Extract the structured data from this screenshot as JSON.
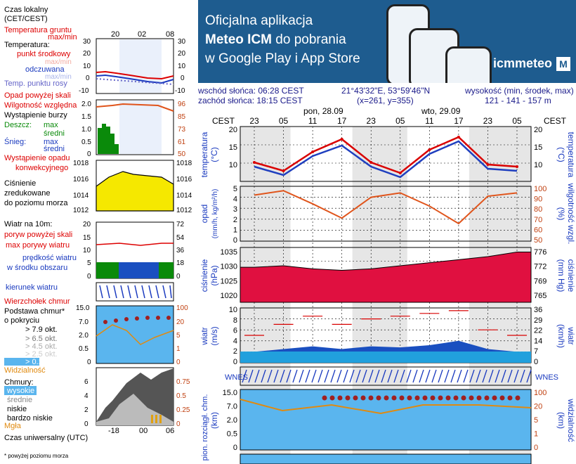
{
  "banner": {
    "line1": "Oficjalna aplikacja",
    "line2_bold": "Meteo ICM",
    "line2_rest": " do pobrania",
    "line3": "w Google Play i App Store",
    "logo": "icmmeteo",
    "logo_mark": "M"
  },
  "legend": {
    "time_local": "Czas lokalny",
    "time_local2": "(CET/CEST)",
    "soil_temp": "Temperatura gruntu",
    "maxmin": "max/min",
    "temperature": "Temperatura:",
    "midpoint": "punkt środkowy",
    "maxmin2": "max/min",
    "feels": "odczuwana",
    "maxmin3": "max/min",
    "dew": "Temp. punktu rosy",
    "precip_above": "Opad powyżej skali",
    "humidity": "Wilgotność względna",
    "storm": "Wystąpienie burzy",
    "rain": "Deszcz:",
    "max": "max",
    "mean": "średni",
    "snow": "Śnieg:",
    "max2": "max",
    "mean2": "średni",
    "conv": "Wystąpienie opadu",
    "conv2": "konwekcyjnego",
    "pressure": "Ciśnienie",
    "reduced": "zredukowane",
    "sealevel": "do poziomu morza",
    "wind_at": "Wiatr na 10m:",
    "gusts_above": "poryw powyżej skali",
    "max_gust": "max porywy wiatru",
    "wind_speed": "prędkość wiatru",
    "in_center": "w środku obszaru",
    "wind_dir": "kierunek wiatru",
    "cloud_top": "Wierzchołek chmur",
    "cloud_base": "Podstawa chmur*",
    "coverage": "o pokryciu",
    "c79": "> 7.9 okt.",
    "c65": "> 6.5 okt.",
    "c45": "> 4.5 okt.",
    "c25": "> 2.5 okt.",
    "c01": "> 0.1 okt.",
    "visibility": "Widzialność",
    "clouds": "Chmury:",
    "high": "wysokie",
    "mid": "średnie",
    "low": "niskie",
    "verylow": "bardzo niskie",
    "fog": "Mgła",
    "utc": "Czas uniwersalny (UTC)",
    "footnote": "* powyżej poziomu morza"
  },
  "mini": {
    "top_ticks": [
      "20",
      "02",
      "08"
    ],
    "bottom_ticks": [
      "-18",
      "00",
      "06"
    ],
    "temp_left": [
      "30",
      "20",
      "10",
      "0",
      "-10"
    ],
    "temp_right": [
      "30",
      "20",
      "10",
      "0",
      "-10"
    ],
    "prec_left": [
      "2.0",
      "1.5",
      "1.0",
      "0.5",
      "0"
    ],
    "prec_right": [
      "96",
      "85",
      "73",
      "61",
      "50"
    ],
    "pres_left": [
      "1018",
      "1016",
      "1014",
      "1012"
    ],
    "pres_right": [
      "1018",
      "1016",
      "1014",
      "1012"
    ],
    "wind_left": [
      "20",
      "15",
      "10",
      "5",
      "0"
    ],
    "wind_right": [
      "72",
      "54",
      "36",
      "18",
      "0"
    ],
    "cloud_left": [
      "15.0",
      "7.0",
      "2.0",
      "0.5",
      "0"
    ],
    "cloud_right": [
      "100",
      "20",
      "5",
      "1",
      "0"
    ],
    "cl_left": [
      "6",
      "4",
      "2",
      "0"
    ],
    "cl_right": [
      "0.75",
      "0.5",
      "0.25",
      "0"
    ]
  },
  "info": {
    "sunrise": "wschód słońca: 06:28 CEST",
    "sunset": "zachód słońca: 18:15 CEST",
    "coords": "21°43'32\"E, 53°59'46\"N",
    "grid": "(x=261,  y=355)",
    "elev_label": "wysokość (min, środek, max)",
    "elev": "121 - 141 - 157 m"
  },
  "main": {
    "tz": "CEST",
    "day1": "pon, 28.09",
    "day2": "wto, 29.09",
    "hour_ticks": [
      "23",
      "05",
      "11",
      "17",
      "23",
      "05",
      "11",
      "17",
      "23",
      "05"
    ],
    "temp_label": "temperatura",
    "temp_unit": "(°C)",
    "temp_ticks": [
      "20",
      "15",
      "10"
    ],
    "prec_label": "opad",
    "prec_unit": "(mm/h, kg/m²/h)",
    "hum_label": "wilgotność wzgl.",
    "hum_unit": "(%)",
    "prec_ticks": [
      "5",
      "4",
      "3",
      "2",
      "1",
      "0"
    ],
    "hum_ticks": [
      "100",
      "90",
      "80",
      "70",
      "60",
      "50"
    ],
    "pres_label": "ciśnienie",
    "pres_unit": "(hPa)",
    "presmm_unit": "(mm Hg)",
    "pres_ticks": [
      "1035",
      "1030",
      "1025",
      "1020"
    ],
    "presmm_ticks": [
      "776",
      "772",
      "769",
      "765"
    ],
    "wind_label": "wiatr",
    "wind_unit": "(m/s)",
    "windkm_unit": "(km/h)",
    "wind_ticks": [
      "10",
      "8",
      "6",
      "4",
      "2",
      "0"
    ],
    "windkm_ticks": [
      "36",
      "29",
      "22",
      "14",
      "7",
      "0"
    ],
    "compass": "WNES",
    "cloud_label": "pion. rozciągł. chm.",
    "cloud_unit": "(km)",
    "vis_label": "widzialność",
    "vis_unit": "(km)",
    "cloud_ticks": [
      "15.0",
      "7.0",
      "2.0",
      "0.5",
      "0"
    ],
    "vis_ticks": [
      "100",
      "20",
      "5",
      "1",
      "0"
    ]
  },
  "colors": {
    "temp": "#d90000",
    "feels": "#1f3fbf",
    "humidity": "#e0541b",
    "pressure": "#e01040",
    "wind": "#1a4fc0",
    "wind_light": "#22a8e0",
    "banner": "#1e5c8f"
  },
  "chart_data": [
    {
      "type": "line",
      "title": "temperatura",
      "ylabel": "(°C)",
      "ylim": [
        7,
        20
      ],
      "x": [
        "23",
        "05",
        "11",
        "17",
        "23",
        "05",
        "11",
        "17",
        "23",
        "05"
      ],
      "series": [
        {
          "name": "temperatura",
          "values": [
            11.5,
            9.5,
            14.0,
            17.0,
            11.5,
            9.0,
            14.5,
            17.5,
            11.0,
            10.5
          ]
        },
        {
          "name": "odczuwana",
          "values": [
            10.5,
            8.5,
            13.0,
            15.5,
            10.5,
            8.0,
            13.5,
            16.5,
            10.0,
            9.5
          ]
        }
      ]
    },
    {
      "type": "line",
      "title": "wilgotność wzgl.",
      "ylabel": "(%)",
      "ylim": [
        50,
        100
      ],
      "x": [
        "23",
        "05",
        "11",
        "17",
        "23",
        "05",
        "11",
        "17",
        "23",
        "05"
      ],
      "series": [
        {
          "name": "wilgotność wzgl.",
          "values": [
            92,
            96,
            84,
            71,
            90,
            94,
            82,
            66,
            91,
            94
          ]
        }
      ]
    },
    {
      "type": "area",
      "title": "ciśnienie",
      "ylabel": "(hPa)",
      "ylim": [
        1018,
        1036
      ],
      "x": [
        "23",
        "05",
        "11",
        "17",
        "23",
        "05",
        "11",
        "17",
        "23",
        "05"
      ],
      "series": [
        {
          "name": "ciśnienie",
          "values": [
            1029.5,
            1030.0,
            1029.0,
            1028.5,
            1029.0,
            1030.0,
            1031.0,
            1032.0,
            1033.0,
            1034.5
          ]
        }
      ]
    },
    {
      "type": "area",
      "title": "wiatr",
      "ylabel": "(m/s)",
      "ylim": [
        0,
        10
      ],
      "x": [
        "23",
        "05",
        "11",
        "17",
        "23",
        "05",
        "11",
        "17",
        "23",
        "05"
      ],
      "series": [
        {
          "name": "wiatr",
          "values": [
            2.0,
            2.5,
            3.0,
            2.5,
            3.0,
            2.8,
            3.2,
            4.0,
            2.5,
            2.0
          ]
        },
        {
          "name": "max porywy wiatru",
          "values": [
            5.0,
            7.0,
            8.5,
            7.0,
            8.0,
            8.5,
            9.0,
            9.5,
            6.0,
            5.0
          ]
        }
      ]
    }
  ]
}
